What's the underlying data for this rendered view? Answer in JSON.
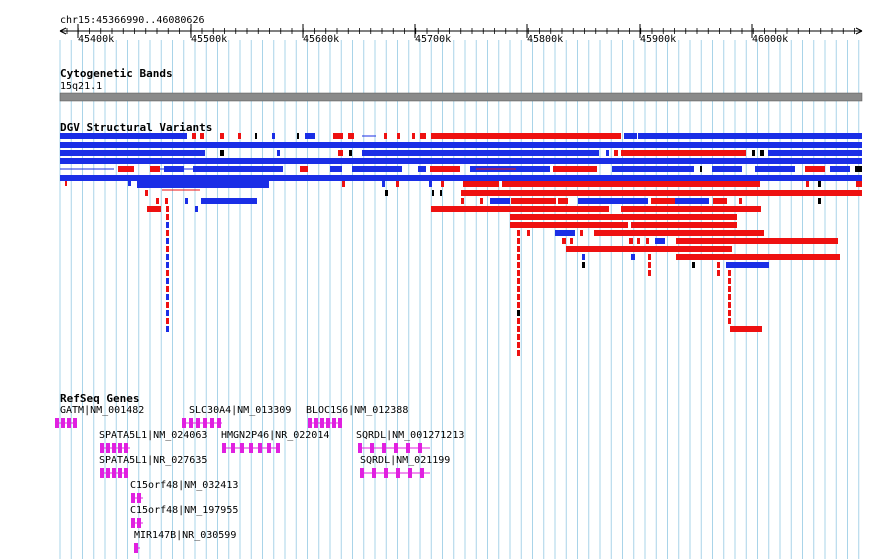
{
  "ruler": {
    "position": "chr15:45366990..46080626",
    "ticks": [
      "45400k",
      "45500k",
      "45600k",
      "45700k",
      "45800k",
      "45900k",
      "46000k"
    ]
  },
  "cytoband": {
    "title": "Cytogenetic Bands",
    "band": "15q21.1"
  },
  "dgv": {
    "title": "DGV Structural Variants"
  },
  "refseq": {
    "title": "RefSeq Genes",
    "genes": [
      "GATM|NM_001482",
      "SLC30A4|NM_013309",
      "BLOC1S6|NM_012388",
      "SPATA5L1|NM_024063",
      "HMGN2P46|NR_022014",
      "SQRDL|NM_001271213",
      "SPATA5L1|NR_027635",
      "SQRDL|NM_021199",
      "C15orf48|NM_032413",
      "C15orf48|NM_197955",
      "MIR147B|NR_030599"
    ]
  },
  "colors": {
    "gain": "#ee1111",
    "loss": "#1a2ee6",
    "gene": "#e020e0",
    "grid": "#a9d4e9",
    "band": "#8a8a8a"
  }
}
